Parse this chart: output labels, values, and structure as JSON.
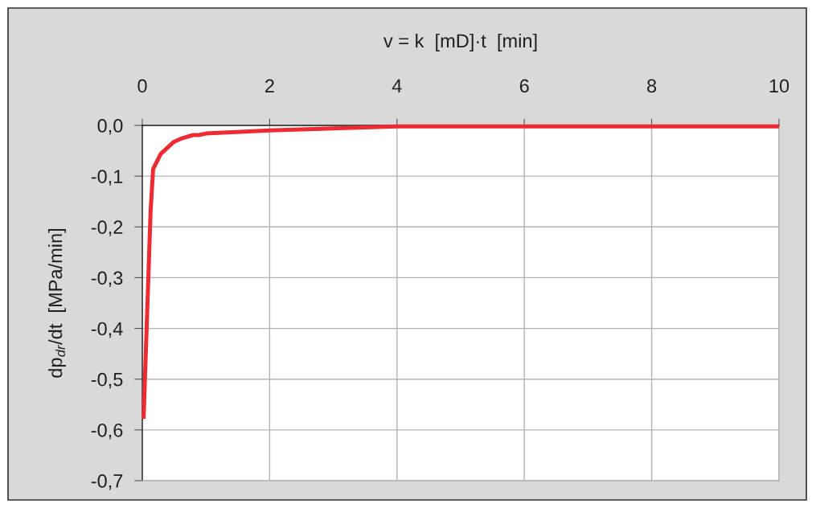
{
  "chart_data": {
    "type": "line",
    "xlabel": "v = k  [mD]·t  [min]",
    "ylabel": "dp$_{dr}$/dt  [MPa/min]",
    "x": [
      0.02,
      0.13,
      0.17,
      0.29,
      0.49,
      0.63,
      0.8,
      0.89,
      1.0,
      2,
      4,
      10
    ],
    "series": [
      {
        "color": "#ee2a33",
        "values": [
          -0.578,
          -0.17,
          -0.086,
          -0.056,
          -0.033,
          -0.025,
          -0.019,
          -0.019,
          -0.016,
          -0.01,
          -0.002,
          -0.002
        ]
      }
    ],
    "xlim": [
      0,
      10
    ],
    "xticks": [
      0,
      2,
      4,
      6,
      8,
      10
    ],
    "ylim": [
      -0.7,
      0
    ],
    "yticks": [
      {
        "value": 0,
        "label": "0,0"
      },
      {
        "value": -0.1,
        "label": "-0,1"
      },
      {
        "value": -0.2,
        "label": "-0,2"
      },
      {
        "value": -0.3,
        "label": "-0,3"
      },
      {
        "value": -0.4,
        "label": "-0,4"
      },
      {
        "value": -0.5,
        "label": "-0,5"
      },
      {
        "value": -0.6,
        "label": "-0,6"
      },
      {
        "value": -0.7,
        "label": "-0,7"
      }
    ],
    "grid": true,
    "line_style": "solid"
  }
}
